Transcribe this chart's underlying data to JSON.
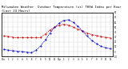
{
  "title": "Milwaukee Weather  Outdoor Temperature (vs) THSW Index per Hour (Last 24 Hours)",
  "title_fontsize": 2.8,
  "background_color": "#ffffff",
  "plot_bg_color": "#ffffff",
  "grid_color": "#999999",
  "hours": [
    0,
    1,
    2,
    3,
    4,
    5,
    6,
    7,
    8,
    9,
    10,
    11,
    12,
    13,
    14,
    15,
    16,
    17,
    18,
    19,
    20,
    21,
    22,
    23
  ],
  "temp": [
    32,
    31,
    30,
    30,
    30,
    30,
    30,
    30,
    30,
    36,
    44,
    50,
    54,
    56,
    54,
    50,
    46,
    42,
    38,
    35,
    33,
    31,
    29,
    28
  ],
  "thsw": [
    5,
    3,
    2,
    1,
    0,
    -1,
    -2,
    3,
    12,
    24,
    38,
    50,
    58,
    64,
    65,
    60,
    52,
    42,
    32,
    23,
    16,
    11,
    8,
    6
  ],
  "temp_color": "#cc0000",
  "thsw_color": "#0000cc",
  "ylim": [
    -10,
    80
  ],
  "yticks_right": [
    -10,
    0,
    10,
    20,
    30,
    40,
    50,
    60,
    70,
    80
  ],
  "ytick_labels_right": [
    "-10",
    "0",
    "10",
    "20",
    "30",
    "40",
    "50",
    "60",
    "70",
    "80"
  ],
  "xtick_labels": [
    "12a",
    "1",
    "2",
    "3",
    "4",
    "5",
    "6",
    "7",
    "8",
    "9",
    "10",
    "11",
    "12p",
    "1",
    "2",
    "3",
    "4",
    "5",
    "6",
    "7",
    "8",
    "9",
    "10",
    "11"
  ]
}
